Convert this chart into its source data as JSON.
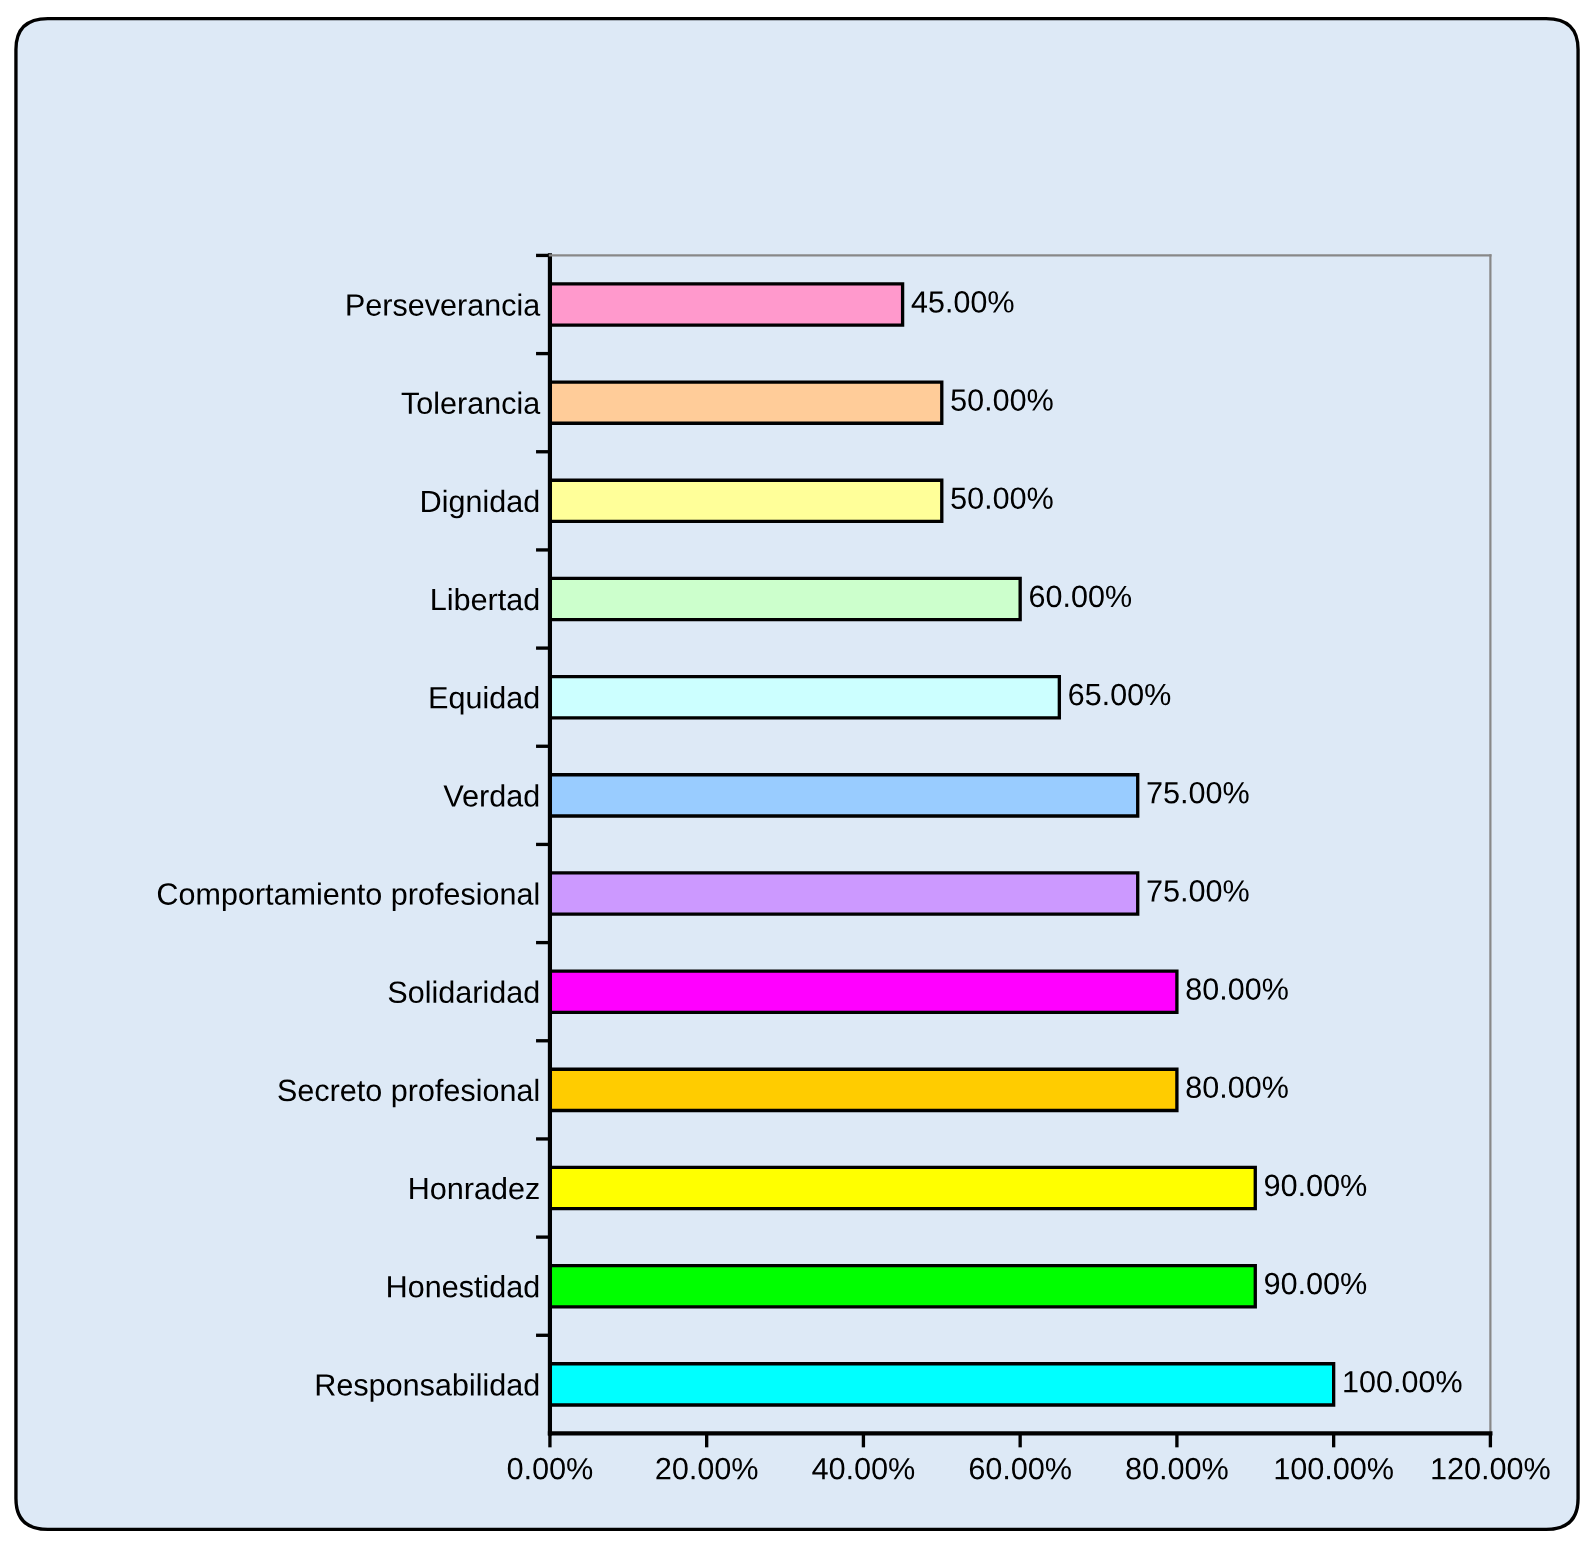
{
  "chart_data": {
    "type": "bar",
    "orientation": "horizontal",
    "categories": [
      "Perseverancia",
      "Tolerancia",
      "Dignidad",
      "Libertad",
      "Equidad",
      "Verdad",
      "Comportamiento profesional",
      "Solidaridad",
      "Secreto profesional",
      "Honradez",
      "Honestidad",
      "Responsabilidad"
    ],
    "values": [
      45,
      50,
      50,
      60,
      65,
      75,
      75,
      80,
      80,
      90,
      90,
      100
    ],
    "colors": [
      "#ff99cc",
      "#ffcc99",
      "#ffff99",
      "#ccffcc",
      "#ccffff",
      "#99ccff",
      "#cc99ff",
      "#ff00ff",
      "#ffcc00",
      "#ffff00",
      "#00ff00",
      "#00ffff"
    ],
    "value_labels": [
      "45.00%",
      "50.00%",
      "50.00%",
      "60.00%",
      "65.00%",
      "75.00%",
      "75.00%",
      "80.00%",
      "80.00%",
      "90.00%",
      "90.00%",
      "100.00%"
    ],
    "xlim": [
      0,
      120
    ],
    "xticks": [
      {
        "value": 0,
        "label": "0.00%"
      },
      {
        "value": 20,
        "label": "20.00%"
      },
      {
        "value": 40,
        "label": "40.00%"
      },
      {
        "value": 60,
        "label": "60.00%"
      },
      {
        "value": 80,
        "label": "80.00%"
      },
      {
        "value": 100,
        "label": "100.00%"
      },
      {
        "value": 120,
        "label": "120.00%"
      }
    ],
    "grid": false,
    "legend": false
  }
}
